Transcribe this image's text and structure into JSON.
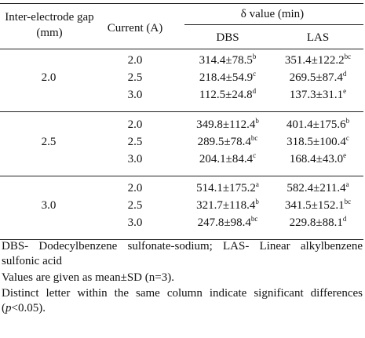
{
  "table": {
    "headers": {
      "gap": "Inter-electrode gap (mm)",
      "current": "Current (A)",
      "delta": "δ value (min)",
      "dbs": "DBS",
      "las": "LAS"
    },
    "groups": [
      {
        "gap": "2.0",
        "rows": [
          {
            "current": "2.0",
            "dbs": {
              "value": "314.4±78.5",
              "sup": "b"
            },
            "las": {
              "value": "351.4±122.2",
              "sup": "bc"
            }
          },
          {
            "current": "2.5",
            "dbs": {
              "value": "218.4±54.9",
              "sup": "c"
            },
            "las": {
              "value": "269.5±87.4",
              "sup": "d"
            }
          },
          {
            "current": "3.0",
            "dbs": {
              "value": "112.5±24.8",
              "sup": "d"
            },
            "las": {
              "value": "137.3±31.1",
              "sup": "e"
            }
          }
        ]
      },
      {
        "gap": "2.5",
        "rows": [
          {
            "current": "2.0",
            "dbs": {
              "value": "349.8±112.4",
              "sup": "b"
            },
            "las": {
              "value": "401.4±175.6",
              "sup": "b"
            }
          },
          {
            "current": "2.5",
            "dbs": {
              "value": "289.5±78.4",
              "sup": "bc"
            },
            "las": {
              "value": "318.5±100.4",
              "sup": "c"
            }
          },
          {
            "current": "3.0",
            "dbs": {
              "value": "204.1±84.4",
              "sup": "c"
            },
            "las": {
              "value": "168.4±43.0",
              "sup": "e"
            }
          }
        ]
      },
      {
        "gap": "3.0",
        "rows": [
          {
            "current": "2.0",
            "dbs": {
              "value": "514.1±175.2",
              "sup": "a"
            },
            "las": {
              "value": "582.4±211.4",
              "sup": "a"
            }
          },
          {
            "current": "2.5",
            "dbs": {
              "value": "321.7±118.4",
              "sup": "b"
            },
            "las": {
              "value": "341.5±152.1",
              "sup": "bc"
            }
          },
          {
            "current": "3.0",
            "dbs": {
              "value": "247.8±98.4",
              "sup": "bc"
            },
            "las": {
              "value": "229.8±88.1",
              "sup": "d"
            }
          }
        ]
      }
    ]
  },
  "footnotes": {
    "abbreviations": "DBS- Dodecylbenzene sulfonate-sodium; LAS- Linear alkylbenzene sulfonic acid",
    "values": "Values are given as mean±SD (n=3).",
    "significance": {
      "before": "Distinct letter within the same column indicate significant differences (",
      "italic": "p",
      "after": "<0.05)."
    }
  }
}
